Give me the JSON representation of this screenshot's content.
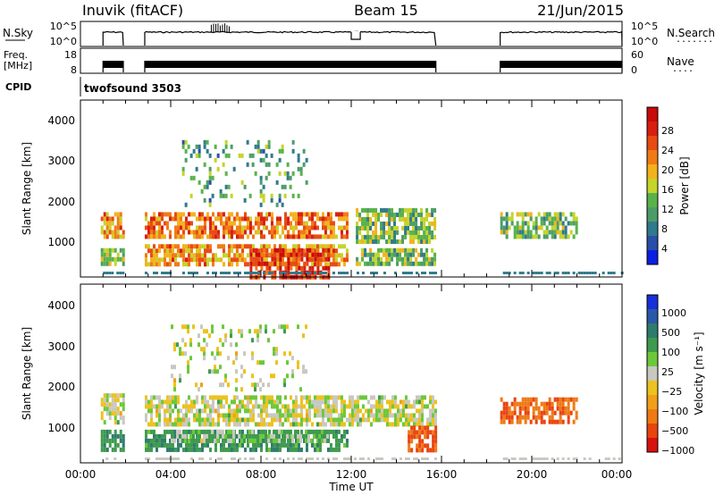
{
  "header": {
    "station": "Inuvik (fitACF)",
    "beam": "Beam 15",
    "date": "21/Jun/2015"
  },
  "colors": {
    "power_scale": [
      "#0a1fe0",
      "#2a4fa8",
      "#2f7a8c",
      "#4d9c68",
      "#58b24a",
      "#c4d42a",
      "#f2b21c",
      "#f07a16",
      "#e84a12",
      "#d81e10",
      "#c80a0a"
    ],
    "velocity_scale": [
      "#1830d8",
      "#2b58a8",
      "#2e7c6c",
      "#3f9a4e",
      "#6cc83a",
      "#c8c8c0",
      "#ecc21e",
      "#f0a018",
      "#ee7a14",
      "#e84410",
      "#d8120e"
    ]
  },
  "panels": {
    "nsky": {
      "left_label": "N.Sky",
      "left_ticks": [
        "10^5",
        "10^0"
      ],
      "right_ticks": [
        "10^5",
        "10^0"
      ],
      "right_label": "N.Search",
      "right_dots": "........"
    },
    "freq": {
      "left_label_1": "Freq.",
      "left_label_2": "[MHz]",
      "left_ticks": [
        "18",
        "8"
      ],
      "right_ticks": [
        "60",
        "0"
      ],
      "right_label": "Nave",
      "right_dots": "...."
    },
    "cpid": {
      "label": "CPID",
      "value": "twofsound 3503"
    },
    "power": {
      "ylabel": "Slant Range [km]",
      "yticks": [
        "4000",
        "3000",
        "2000",
        "1000"
      ],
      "colorbar_label": "Power [dB]",
      "colorbar_ticks": [
        "28",
        "24",
        "20",
        "16",
        "12",
        "8",
        "4"
      ]
    },
    "velocity": {
      "ylabel": "Slant Range [km]",
      "yticks": [
        "4000",
        "3000",
        "2000",
        "1000"
      ],
      "colorbar_label": "Velocity [m s⁻¹]",
      "colorbar_ticks": [
        "1000",
        "500",
        "100",
        "25",
        "−25",
        "−100",
        "−500",
        "−1000"
      ]
    }
  },
  "xaxis": {
    "ticks": [
      "00:00",
      "04:00",
      "08:00",
      "12:00",
      "16:00",
      "20:00",
      "00:00"
    ],
    "label": "Time UT"
  },
  "chart_data": [
    {
      "type": "line",
      "panel": "N.Sky / N.Search",
      "x_units": "hours UT",
      "segments": [
        [
          1.0,
          1.9
        ],
        [
          2.85,
          15.75
        ],
        [
          18.6,
          24.0
        ]
      ],
      "y_level": "near 10^4 (log scale, 10^0 to 10^5)",
      "dip": {
        "x": [
          12.0,
          12.4
        ],
        "level": "about 10^1"
      },
      "spike": {
        "x": [
          5.8,
          6.6
        ],
        "level": "about 10^5"
      }
    },
    {
      "type": "line",
      "panel": "Freq. / Nave",
      "x_units": "hours UT",
      "segments": [
        [
          1.0,
          1.9
        ],
        [
          2.85,
          15.75
        ],
        [
          18.6,
          24.0
        ]
      ],
      "freq_mhz_range": [
        8,
        18
      ],
      "note": "alternating twofsound frequencies"
    },
    {
      "type": "heatmap",
      "panel": "Power",
      "xlim_hours": [
        0,
        24
      ],
      "ylim_km": [
        180,
        4600
      ],
      "zlim_db": [
        0,
        30
      ],
      "regions": [
        {
          "t": [
            0.9,
            1.9
          ],
          "r": [
            1200,
            1800
          ],
          "v": 20
        },
        {
          "t": [
            0.9,
            1.9
          ],
          "r": [
            500,
            900
          ],
          "v": 14
        },
        {
          "t": [
            2.85,
            11.8
          ],
          "r": [
            1150,
            1800
          ],
          "v": 22
        },
        {
          "t": [
            2.85,
            11.8
          ],
          "r": [
            500,
            1000
          ],
          "v": 20
        },
        {
          "t": [
            7.5,
            11.0
          ],
          "r": [
            200,
            900
          ],
          "v": 26
        },
        {
          "t": [
            12.2,
            15.7
          ],
          "r": [
            1100,
            1900
          ],
          "v": 12
        },
        {
          "t": [
            12.2,
            15.7
          ],
          "r": [
            500,
            900
          ],
          "v": 12
        },
        {
          "t": [
            18.6,
            22.0
          ],
          "r": [
            1200,
            1800
          ],
          "v": 12
        },
        {
          "t": [
            4.5,
            10.0
          ],
          "r": [
            2000,
            3600
          ],
          "v": 10
        }
      ]
    },
    {
      "type": "heatmap",
      "panel": "Velocity",
      "xlim_hours": [
        0,
        24
      ],
      "ylim_km": [
        180,
        4600
      ],
      "zlim_ms": [
        -1000,
        1000
      ],
      "regions": [
        {
          "t": [
            0.9,
            1.9
          ],
          "r": [
            1200,
            1900
          ],
          "v": 0
        },
        {
          "t": [
            0.9,
            1.9
          ],
          "r": [
            500,
            1000
          ],
          "v": 150
        },
        {
          "t": [
            2.85,
            15.7
          ],
          "r": [
            1150,
            1850
          ],
          "v": 0
        },
        {
          "t": [
            2.85,
            11.8
          ],
          "r": [
            450,
            1000
          ],
          "v": 150
        },
        {
          "t": [
            4.0,
            11.0
          ],
          "r": [
            700,
            1000
          ],
          "v": 50
        },
        {
          "t": [
            14.5,
            15.7
          ],
          "r": [
            500,
            1100
          ],
          "v": -400
        },
        {
          "t": [
            18.6,
            22.0
          ],
          "r": [
            1200,
            1800
          ],
          "v": -400
        },
        {
          "t": [
            4.0,
            10.0
          ],
          "r": [
            2000,
            3600
          ],
          "v": 0
        }
      ]
    }
  ]
}
